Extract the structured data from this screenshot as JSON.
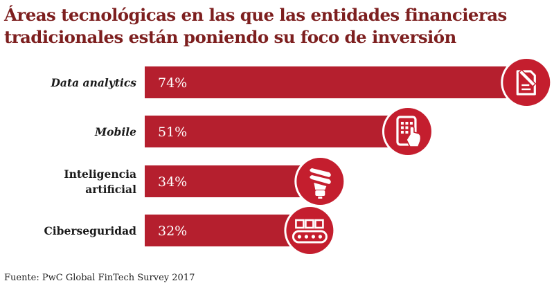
{
  "title": "Áreas tecnológicas en las que las entidades financieras tradicionales están poniendo su foco de inversión",
  "source": "Fuente: PwC Global FinTech Survey 2017",
  "colors": {
    "bar": "#b51f2e",
    "title": "#7d1f1f",
    "label": "#1a1a1a",
    "icon_bg": "#c41e2e"
  },
  "chart_data": {
    "type": "bar",
    "orientation": "horizontal",
    "title": "Áreas tecnológicas en las que las entidades financieras tradicionales están poniendo su foco de inversión",
    "categories": [
      {
        "lines": [
          "Data analytics"
        ],
        "italic": true
      },
      {
        "lines": [
          "Mobile"
        ],
        "italic": true
      },
      {
        "lines": [
          "Inteligencia",
          "artificial"
        ],
        "italic": false
      },
      {
        "lines": [
          "Ciberseguridad"
        ],
        "italic": false
      }
    ],
    "values": [
      74,
      51,
      34,
      32
    ],
    "value_labels": [
      "74%",
      "51%",
      "34%",
      "32%"
    ],
    "icons": [
      "document-pen-icon",
      "mobile-phone-icon",
      "light-bulb-icon",
      "conveyor-belt-icon"
    ],
    "unit": "%",
    "xlim": [
      0,
      100
    ],
    "xlabel": "",
    "ylabel": ""
  }
}
